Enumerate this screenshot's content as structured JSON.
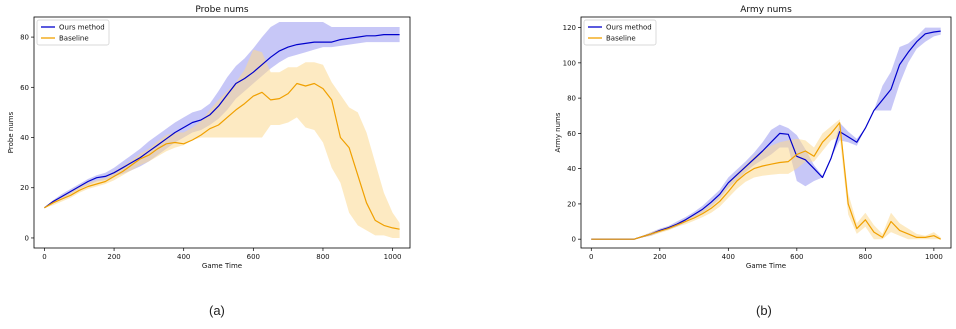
{
  "captions": [
    "(a)",
    "(b)"
  ],
  "colors": {
    "ours": "#0000cc",
    "ours_band": "#8f8ff0",
    "baseline": "#f0a000",
    "baseline_band": "#fbd98f"
  },
  "chart_data": [
    {
      "type": "line",
      "title": "Probe nums",
      "xlabel": "Game Time",
      "ylabel": "Probe nums",
      "xlim": [
        -30,
        1050
      ],
      "ylim": [
        -4,
        88
      ],
      "xticks": [
        0,
        200,
        400,
        600,
        800,
        1000
      ],
      "yticks": [
        0,
        20,
        40,
        60,
        80
      ],
      "legend": "top-left",
      "grid": false,
      "series": [
        {
          "name": "Ours method",
          "color": "#0000cc",
          "x": [
            0,
            25,
            50,
            75,
            100,
            125,
            150,
            175,
            200,
            225,
            250,
            275,
            300,
            325,
            350,
            375,
            400,
            425,
            450,
            475,
            500,
            525,
            550,
            575,
            600,
            625,
            650,
            675,
            700,
            725,
            750,
            775,
            800,
            825,
            850,
            875,
            900,
            925,
            950,
            975,
            1000,
            1020
          ],
          "y": [
            12,
            14.5,
            16.5,
            18.5,
            20.5,
            22.5,
            24,
            24.5,
            26,
            28,
            30,
            32,
            34.5,
            37,
            39.5,
            42,
            44,
            46,
            47,
            49,
            52.5,
            57,
            61.5,
            63.5,
            66,
            69,
            72,
            74.5,
            76,
            77,
            77.5,
            78,
            78,
            78,
            79,
            79.5,
            80,
            80.5,
            80.5,
            81,
            81,
            81
          ],
          "lower": [
            12,
            14,
            15.5,
            17.5,
            19.5,
            21,
            22.5,
            23,
            24.5,
            25.5,
            27,
            28.5,
            30.5,
            33,
            35.5,
            38,
            40,
            42,
            43,
            45,
            47.5,
            51,
            55.5,
            58.5,
            61.5,
            64.5,
            67.5,
            70,
            72,
            73,
            74,
            75,
            76,
            76,
            76.5,
            77,
            77.5,
            78,
            78,
            78,
            78,
            78
          ],
          "upper": [
            12,
            15,
            17.5,
            19.5,
            21.5,
            23.5,
            25,
            26,
            28,
            30.5,
            33,
            35.5,
            38.5,
            41,
            43.5,
            46,
            48,
            50,
            51,
            53.5,
            58.5,
            64,
            68.5,
            71.5,
            75.5,
            80,
            84,
            86,
            86,
            86,
            86,
            86,
            86,
            84,
            84,
            84,
            84,
            84,
            84,
            84,
            84,
            84
          ]
        },
        {
          "name": "Baseline",
          "color": "#f0a000",
          "x": [
            0,
            25,
            50,
            75,
            100,
            125,
            150,
            175,
            200,
            225,
            250,
            275,
            300,
            325,
            350,
            375,
            400,
            425,
            450,
            475,
            500,
            525,
            550,
            575,
            600,
            625,
            650,
            675,
            700,
            725,
            750,
            775,
            800,
            825,
            850,
            875,
            900,
            925,
            950,
            975,
            1000,
            1020
          ],
          "y": [
            12,
            14,
            15.5,
            17,
            19,
            20.5,
            21.5,
            22.5,
            24.5,
            26.5,
            29,
            31.5,
            33,
            35.5,
            37.5,
            38,
            37.5,
            39,
            41,
            43.5,
            45,
            48,
            51,
            53.5,
            56.5,
            58,
            55,
            55.5,
            57.5,
            61.5,
            60.5,
            61.5,
            59.5,
            55,
            40,
            36,
            25,
            14,
            7,
            5,
            4,
            3.5
          ],
          "lower": [
            12,
            13,
            14.5,
            16,
            18,
            19.5,
            20.5,
            21.5,
            23,
            25,
            27,
            29,
            30.5,
            32.5,
            34.5,
            36,
            37,
            39,
            40,
            40,
            40,
            40,
            40,
            40,
            40,
            40,
            45,
            45,
            46,
            48,
            44,
            43,
            38,
            28,
            22,
            10,
            5,
            3,
            1,
            1,
            0,
            0
          ],
          "upper": [
            12,
            15,
            16.5,
            18,
            20.5,
            22,
            23,
            24,
            26.5,
            28.5,
            31,
            33.5,
            35.5,
            38.5,
            41,
            42,
            42,
            44,
            46.5,
            51,
            55,
            58.5,
            62,
            67,
            75,
            74,
            66,
            66,
            68,
            68,
            70,
            70,
            69,
            62,
            57,
            52,
            50,
            42,
            30,
            18,
            10,
            6
          ]
        }
      ]
    },
    {
      "type": "line",
      "title": "Army nums",
      "xlabel": "Game Time",
      "ylabel": "Army nums",
      "xlim": [
        -30,
        1050
      ],
      "ylim": [
        -5,
        126
      ],
      "xticks": [
        0,
        200,
        400,
        600,
        800,
        1000
      ],
      "yticks": [
        0,
        20,
        40,
        60,
        80,
        100,
        120
      ],
      "legend": "top-left",
      "grid": false,
      "series": [
        {
          "name": "Ours method",
          "color": "#0000cc",
          "x": [
            0,
            25,
            50,
            75,
            100,
            125,
            150,
            175,
            200,
            225,
            250,
            275,
            300,
            325,
            350,
            375,
            400,
            425,
            450,
            475,
            500,
            525,
            550,
            575,
            600,
            625,
            650,
            675,
            700,
            725,
            750,
            775,
            800,
            825,
            850,
            875,
            900,
            925,
            950,
            975,
            1000,
            1020
          ],
          "y": [
            0,
            0,
            0,
            0,
            0,
            0,
            1.5,
            3,
            5,
            6.5,
            8.5,
            11,
            14,
            17,
            21,
            25.5,
            32,
            36.5,
            41,
            45.5,
            50,
            55,
            60,
            59.5,
            47,
            45,
            40,
            35,
            46,
            61,
            58,
            55,
            63,
            73,
            79,
            85,
            99,
            106,
            112,
            116.5,
            117.5,
            118
          ],
          "lower": [
            0,
            0,
            0,
            0,
            0,
            0,
            1,
            2,
            4,
            5.5,
            7,
            9.5,
            12.5,
            15,
            18.5,
            23,
            29,
            33.5,
            38,
            42,
            45,
            48,
            52,
            52,
            33,
            30,
            33,
            35,
            46,
            56,
            55,
            53,
            63,
            73,
            73,
            73,
            88,
            100,
            108,
            112,
            115,
            116
          ],
          "upper": [
            0,
            0,
            0,
            0,
            0,
            0,
            2,
            4,
            6,
            7.5,
            10,
            12.5,
            15.5,
            19,
            23.5,
            28,
            35,
            39.5,
            44,
            49,
            55,
            62,
            65,
            63,
            59,
            51,
            42,
            36,
            46,
            66,
            61,
            57,
            63,
            73,
            87,
            95,
            109,
            111,
            115,
            120,
            120,
            120
          ]
        },
        {
          "name": "Baseline",
          "color": "#f0a000",
          "x": [
            0,
            25,
            50,
            75,
            100,
            125,
            150,
            175,
            200,
            225,
            250,
            275,
            300,
            325,
            350,
            375,
            400,
            425,
            450,
            475,
            500,
            525,
            550,
            575,
            600,
            625,
            650,
            675,
            700,
            725,
            750,
            775,
            800,
            825,
            850,
            875,
            900,
            925,
            950,
            975,
            1000,
            1020
          ],
          "y": [
            0,
            0,
            0,
            0,
            0,
            0,
            1.5,
            3,
            4.5,
            6,
            8,
            10,
            12,
            14.5,
            17.5,
            21.5,
            27,
            33,
            37,
            40,
            41.5,
            42.5,
            43.5,
            44,
            48,
            50,
            47,
            55,
            60,
            66,
            20,
            6,
            11,
            4,
            1,
            10,
            5,
            3,
            1,
            1,
            2,
            0
          ],
          "lower": [
            0,
            0,
            0,
            0,
            0,
            0,
            1,
            2,
            3.5,
            5,
            7,
            8.5,
            10.5,
            12.5,
            15,
            18.5,
            23.5,
            28.5,
            32.5,
            35,
            36,
            36.5,
            37,
            37,
            40,
            44,
            44,
            50,
            56,
            58,
            14,
            3,
            7,
            0,
            0,
            4,
            2,
            0,
            0,
            0,
            0,
            0
          ],
          "upper": [
            0,
            0,
            0,
            0,
            0,
            0,
            2,
            4,
            5.5,
            7,
            9,
            11.5,
            13.5,
            16.5,
            20,
            24.5,
            31,
            37.5,
            42,
            47,
            50,
            53,
            55,
            56,
            57,
            56,
            52,
            60,
            64,
            68,
            26,
            9,
            15,
            8,
            3,
            15,
            9,
            6,
            3,
            2,
            4,
            1
          ]
        }
      ]
    }
  ]
}
